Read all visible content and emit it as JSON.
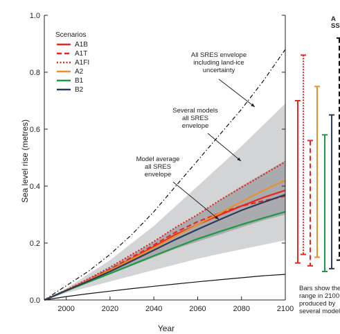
{
  "chart_data": {
    "type": "line",
    "title": "",
    "xlabel": "Year",
    "ylabel": "Sea level rise (metres)",
    "xlim": [
      1990,
      2100
    ],
    "ylim": [
      0.0,
      1.0
    ],
    "x_ticks": [
      2000,
      2020,
      2040,
      2060,
      2080,
      2100
    ],
    "y_ticks": [
      0.0,
      0.2,
      0.4,
      0.6,
      0.8,
      1.0
    ],
    "x_tick_labels": [
      "2000",
      "2020",
      "2040",
      "2060",
      "2080",
      "2100"
    ],
    "y_tick_labels": [
      "0.0",
      "0.2",
      "0.4",
      "0.6",
      "0.8",
      "1.0"
    ],
    "grid": false,
    "legend": {
      "title": "Scenarios",
      "placement": "top-left",
      "entries": [
        {
          "name": "A1B",
          "color": "#e8261e",
          "style": "solid"
        },
        {
          "name": "A1T",
          "color": "#e8261e",
          "style": "dashed"
        },
        {
          "name": "A1FI",
          "color": "#e8261e",
          "style": "dotted"
        },
        {
          "name": "A2",
          "color": "#e8912a",
          "style": "solid"
        },
        {
          "name": "B1",
          "color": "#1e9a46",
          "style": "solid"
        },
        {
          "name": "B2",
          "color": "#2e3a5a",
          "style": "solid"
        }
      ]
    },
    "x": [
      1990,
      2000,
      2010,
      2020,
      2030,
      2040,
      2050,
      2060,
      2070,
      2080,
      2090,
      2100
    ],
    "envelopes": [
      {
        "label": "Several models all SRES envelope",
        "color": "#d2d4d6",
        "lower": [
          0.0,
          0.025,
          0.045,
          0.065,
          0.085,
          0.105,
          0.125,
          0.145,
          0.162,
          0.178,
          0.194,
          0.21
        ],
        "upper": [
          0.0,
          0.04,
          0.09,
          0.14,
          0.2,
          0.26,
          0.33,
          0.4,
          0.47,
          0.54,
          0.615,
          0.69
        ]
      },
      {
        "label": "Model average all SRES envelope",
        "color": "#a9abae",
        "lower": [
          0.0,
          0.03,
          0.06,
          0.09,
          0.12,
          0.15,
          0.18,
          0.205,
          0.23,
          0.255,
          0.28,
          0.3
        ],
        "upper": [
          0.0,
          0.035,
          0.075,
          0.115,
          0.16,
          0.205,
          0.255,
          0.3,
          0.35,
          0.4,
          0.445,
          0.49
        ]
      }
    ],
    "series": [
      {
        "name": "A1B",
        "color": "#e8261e",
        "style": "solid",
        "values": [
          0.0,
          0.033,
          0.068,
          0.105,
          0.145,
          0.187,
          0.23,
          0.265,
          0.298,
          0.33,
          0.36,
          0.385
        ]
      },
      {
        "name": "A1T",
        "color": "#e8261e",
        "style": "dashed",
        "values": [
          0.0,
          0.034,
          0.07,
          0.108,
          0.15,
          0.193,
          0.238,
          0.275,
          0.305,
          0.33,
          0.348,
          0.365
        ]
      },
      {
        "name": "A1FI",
        "color": "#e8261e",
        "style": "dotted",
        "values": [
          0.0,
          0.035,
          0.074,
          0.115,
          0.16,
          0.205,
          0.255,
          0.3,
          0.35,
          0.395,
          0.44,
          0.485
        ]
      },
      {
        "name": "A2",
        "color": "#e8912a",
        "style": "solid",
        "values": [
          0.0,
          0.033,
          0.068,
          0.104,
          0.143,
          0.183,
          0.225,
          0.265,
          0.305,
          0.345,
          0.385,
          0.42
        ]
      },
      {
        "name": "B1",
        "color": "#1e9a46",
        "style": "solid",
        "values": [
          0.0,
          0.032,
          0.063,
          0.093,
          0.124,
          0.155,
          0.185,
          0.215,
          0.24,
          0.265,
          0.288,
          0.31
        ]
      },
      {
        "name": "B2",
        "color": "#2e3a5a",
        "style": "solid",
        "values": [
          0.0,
          0.033,
          0.066,
          0.1,
          0.137,
          0.175,
          0.213,
          0.248,
          0.282,
          0.315,
          0.343,
          0.37
        ]
      }
    ],
    "outer_bounds": [
      {
        "label": "All SRES envelope including land-ice uncertainty",
        "color": "#111111",
        "style": "dashdot",
        "values": [
          0.0,
          0.05,
          0.1,
          0.16,
          0.23,
          0.31,
          0.4,
          0.49,
          0.58,
          0.67,
          0.77,
          0.88
        ]
      },
      {
        "label": "lower bound",
        "color": "#111111",
        "style": "solid",
        "values": [
          0.0,
          0.012,
          0.022,
          0.031,
          0.04,
          0.048,
          0.056,
          0.064,
          0.071,
          0.078,
          0.085,
          0.09
        ]
      }
    ],
    "range_bars": [
      {
        "name": "A1B",
        "color": "#e8261e",
        "style": "solid",
        "low": 0.13,
        "high": 0.7
      },
      {
        "name": "A1T",
        "color": "#e8261e",
        "style": "dashed",
        "low": 0.12,
        "high": 0.56
      },
      {
        "name": "A1FI",
        "color": "#e8261e",
        "style": "dotted",
        "low": 0.16,
        "high": 0.86
      },
      {
        "name": "A2",
        "color": "#e8912a",
        "style": "solid",
        "low": 0.15,
        "high": 0.75
      },
      {
        "name": "B1",
        "color": "#1e9a46",
        "style": "solid",
        "low": 0.1,
        "high": 0.58
      },
      {
        "name": "B2",
        "color": "#2e3a5a",
        "style": "solid",
        "low": 0.11,
        "high": 0.65
      },
      {
        "name": "all",
        "color": "#111111",
        "style": "dashed",
        "low": 0.14,
        "high": 0.92
      }
    ],
    "annotations": [
      {
        "id": "all-sres",
        "lines": [
          "All SRES envelope",
          "including land-ice",
          "uncertainty"
        ]
      },
      {
        "id": "several-models",
        "lines": [
          "Several models",
          "all SRES",
          "envelope"
        ]
      },
      {
        "id": "model-average",
        "lines": [
          "Model average",
          "all SRES",
          "envelope"
        ]
      }
    ],
    "bars_note": [
      "Bars show the",
      "range in 2100",
      "produced by",
      "several models"
    ],
    "corner_text": [
      "A",
      "SS"
    ]
  }
}
